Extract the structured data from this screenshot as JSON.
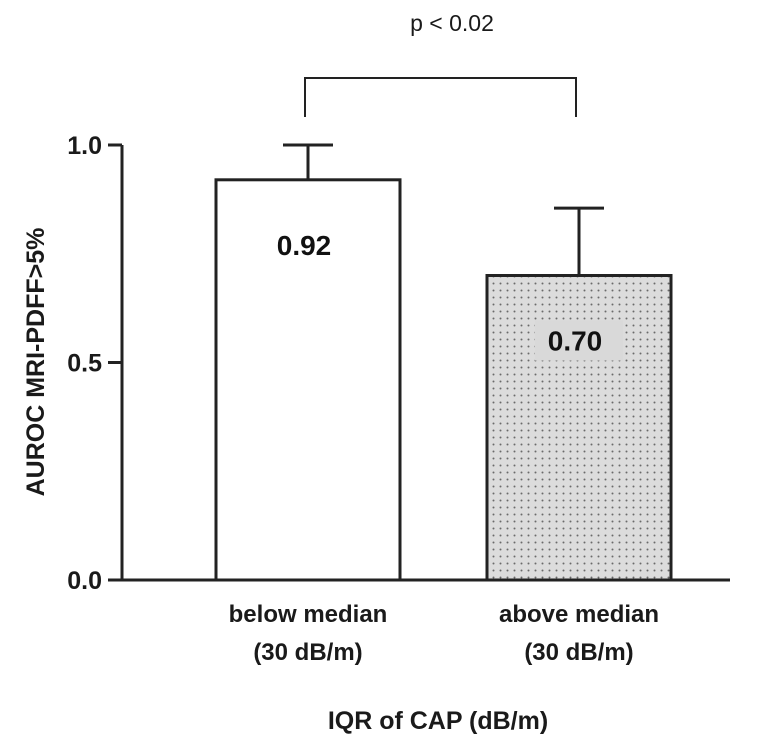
{
  "chart_data": {
    "type": "bar",
    "categories": [
      [
        "below median",
        "(30 dB/m)"
      ],
      [
        "above median",
        "(30 dB/m)"
      ]
    ],
    "values": [
      0.92,
      0.7
    ],
    "value_labels": [
      "0.92",
      "0.70"
    ],
    "error_upper": [
      1.0,
      0.855
    ],
    "bar_fills": [
      "#ffffff",
      "#d9d9d9"
    ],
    "bar_patterns": [
      "none",
      "dotted"
    ],
    "ylabel": "AUROC MRI-PDFF>5%",
    "xlabel": "IQR of CAP (dB/m)",
    "ylim": [
      0.0,
      1.0
    ],
    "yticks": [
      0.0,
      0.5,
      1.0
    ],
    "ytick_labels": [
      "0.0",
      "0.5",
      "1.0"
    ],
    "significance": {
      "label": "p < 0.02",
      "between": [
        0,
        1
      ]
    },
    "grid": false,
    "legend": "none"
  }
}
